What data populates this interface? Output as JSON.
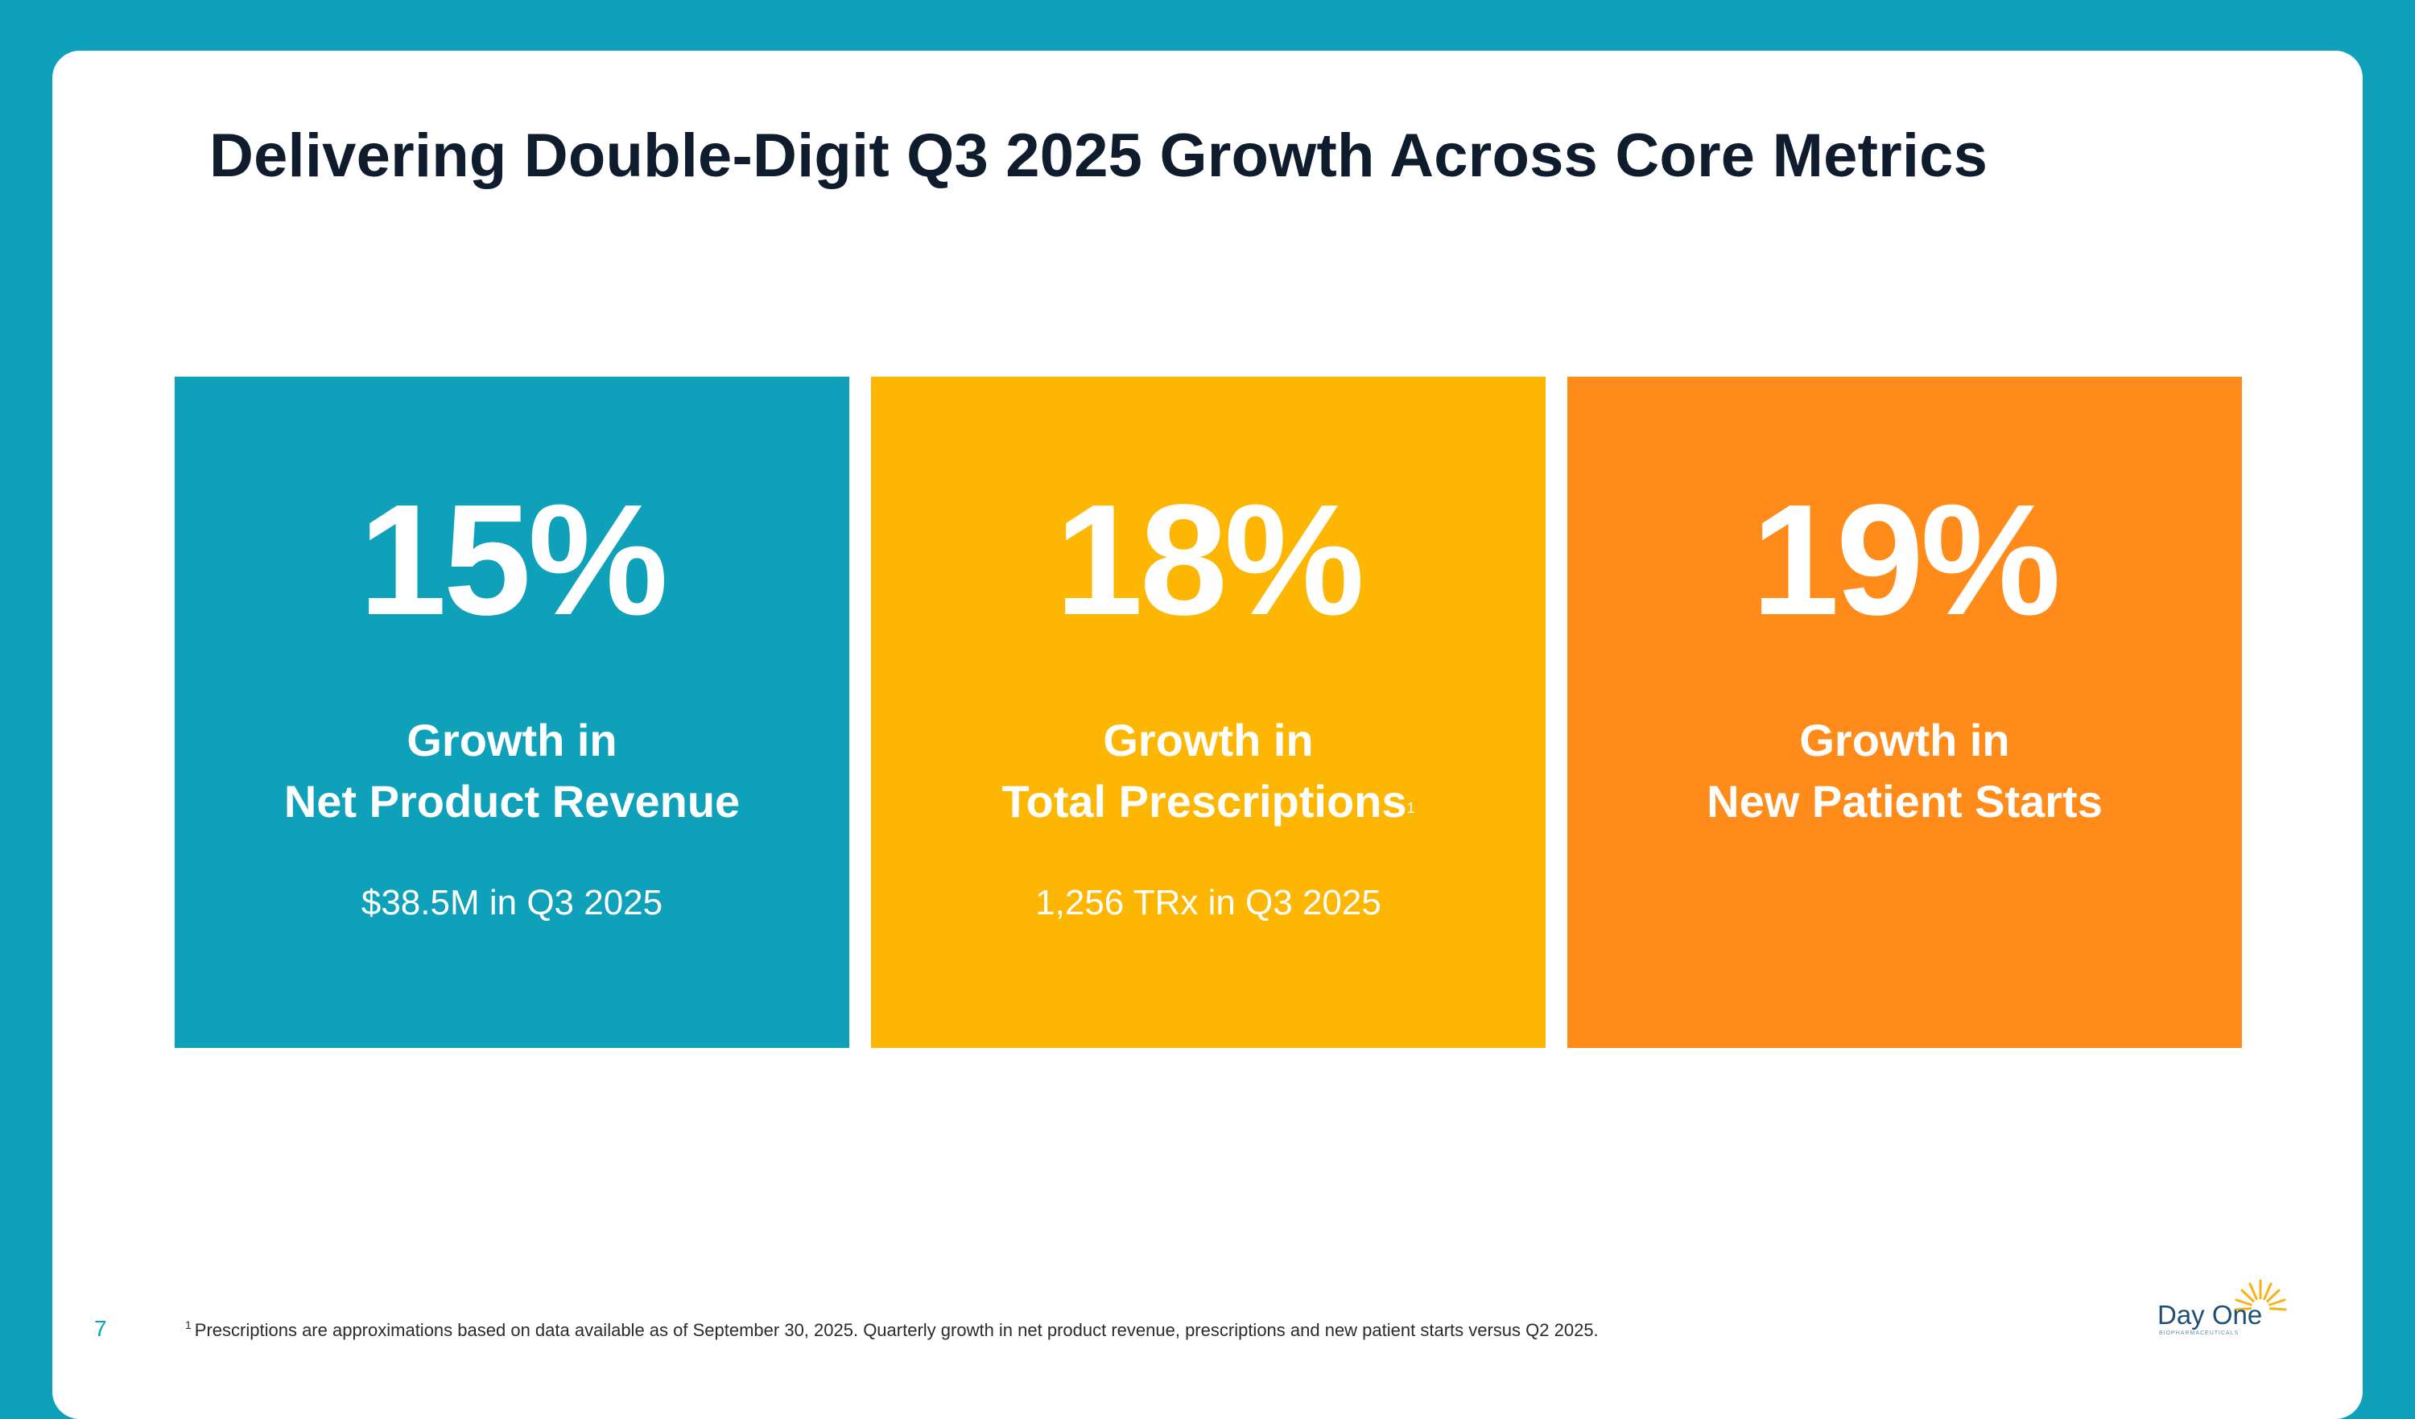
{
  "slide": {
    "title": "Delivering Double-Digit Q3 2025 Growth Across Core Metrics",
    "page_number": "7"
  },
  "tiles": [
    {
      "value": "15%",
      "label_line1": "Growth in",
      "label_line2": "Net Product Revenue",
      "footnote_marker": "",
      "detail": "$38.5M in Q3 2025",
      "color": "#0fa1ba"
    },
    {
      "value": "18%",
      "label_line1": "Growth in",
      "label_line2": "Total Prescriptions",
      "footnote_marker": "1",
      "detail": "1,256 TRx in Q3 2025",
      "color": "#fdb601"
    },
    {
      "value": "19%",
      "label_line1": "Growth in",
      "label_line2": "New Patient Starts",
      "footnote_marker": "",
      "detail": "",
      "color": "#ff8c1a"
    }
  ],
  "footnote": {
    "marker": "1",
    "text": "Prescriptions are approximations based on data available as of September 30, 2025.  Quarterly growth in net product revenue, prescriptions and new patient starts versus Q2 2025."
  },
  "logo": {
    "name": "Day One",
    "tagline": "BIOPHARMACEUTICALS",
    "icon": "sun-burst-icon"
  },
  "colors": {
    "background": "#0fa1ba",
    "title": "#0e1c2e"
  }
}
